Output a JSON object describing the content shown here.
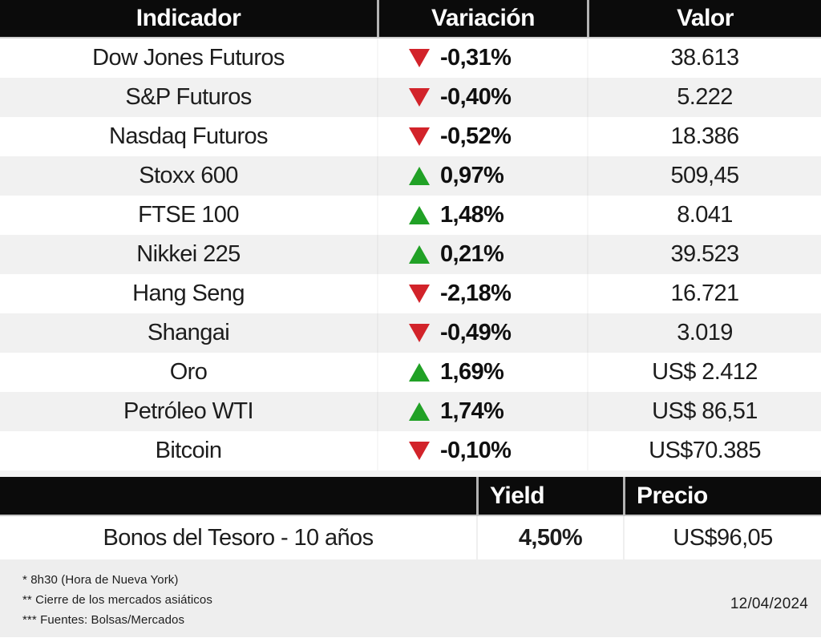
{
  "chart_data": {
    "type": "table",
    "tables": [
      {
        "headers": [
          "Indicador",
          "Variación",
          "Valor"
        ],
        "rows": [
          {
            "indicator": "Dow Jones Futuros",
            "direction": "down",
            "variation": "-0,31%",
            "value": "38.613"
          },
          {
            "indicator": "S&P Futuros",
            "direction": "down",
            "variation": "-0,40%",
            "value": "5.222"
          },
          {
            "indicator": "Nasdaq Futuros",
            "direction": "down",
            "variation": "-0,52%",
            "value": "18.386"
          },
          {
            "indicator": "Stoxx 600",
            "direction": "up",
            "variation": "0,97%",
            "value": "509,45"
          },
          {
            "indicator": "FTSE 100",
            "direction": "up",
            "variation": "1,48%",
            "value": "8.041"
          },
          {
            "indicator": "Nikkei 225",
            "direction": "up",
            "variation": "0,21%",
            "value": "39.523"
          },
          {
            "indicator": "Hang Seng",
            "direction": "down",
            "variation": "-2,18%",
            "value": "16.721"
          },
          {
            "indicator": "Shangai",
            "direction": "down",
            "variation": "-0,49%",
            "value": "3.019"
          },
          {
            "indicator": "Oro",
            "direction": "up",
            "variation": "1,69%",
            "value": "US$ 2.412"
          },
          {
            "indicator": "Petróleo WTI",
            "direction": "up",
            "variation": "1,74%",
            "value": "US$ 86,51"
          },
          {
            "indicator": "Bitcoin",
            "direction": "down",
            "variation": "-0,10%",
            "value": "US$70.385"
          }
        ]
      },
      {
        "headers": [
          "",
          "Yield",
          "Precio"
        ],
        "rows": [
          {
            "indicator": "Bonos del Tesoro - 10 años",
            "yield": "4,50%",
            "price": "US$96,05"
          }
        ]
      }
    ]
  },
  "footer": {
    "notes": [
      "* 8h30 (Hora de Nueva York)",
      "** Cierre de los mercados asiáticos",
      "*** Fuentes: Bolsas/Mercados"
    ],
    "date": "12/04/2024"
  },
  "colors": {
    "header_bg": "#0b0b0b",
    "up_green": "#21a126",
    "down_red": "#d2232a",
    "stripe_gray": "#f1f1f1",
    "footer_gray": "#eeeeee"
  }
}
